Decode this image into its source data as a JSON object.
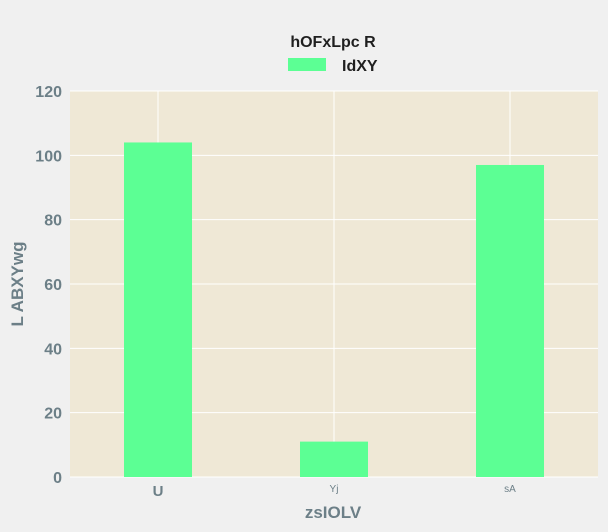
{
  "colors": {
    "page_background": "#f0f0f0",
    "plot_background": "#efe8d6",
    "grid": "#ffffff",
    "bar": "#5cff94",
    "axis_text": "#6c7f87",
    "legend_text": "#1f1f1f"
  },
  "chart_data": {
    "type": "bar",
    "categories": [
      "U",
      "Yj",
      "sA"
    ],
    "category_label_sizes": [
      "large",
      "small",
      "small"
    ],
    "series": [
      {
        "name": "IdXY",
        "values": [
          104,
          11,
          97
        ]
      }
    ],
    "legend_title": "hOFxLpc R",
    "legend_position": "top-center",
    "xlabel": "zsIOLV",
    "ylabel": "L ABXYwg",
    "ylim": [
      0,
      120
    ],
    "yticks": [
      0,
      20,
      40,
      60,
      80,
      100,
      120
    ],
    "grid": true
  }
}
